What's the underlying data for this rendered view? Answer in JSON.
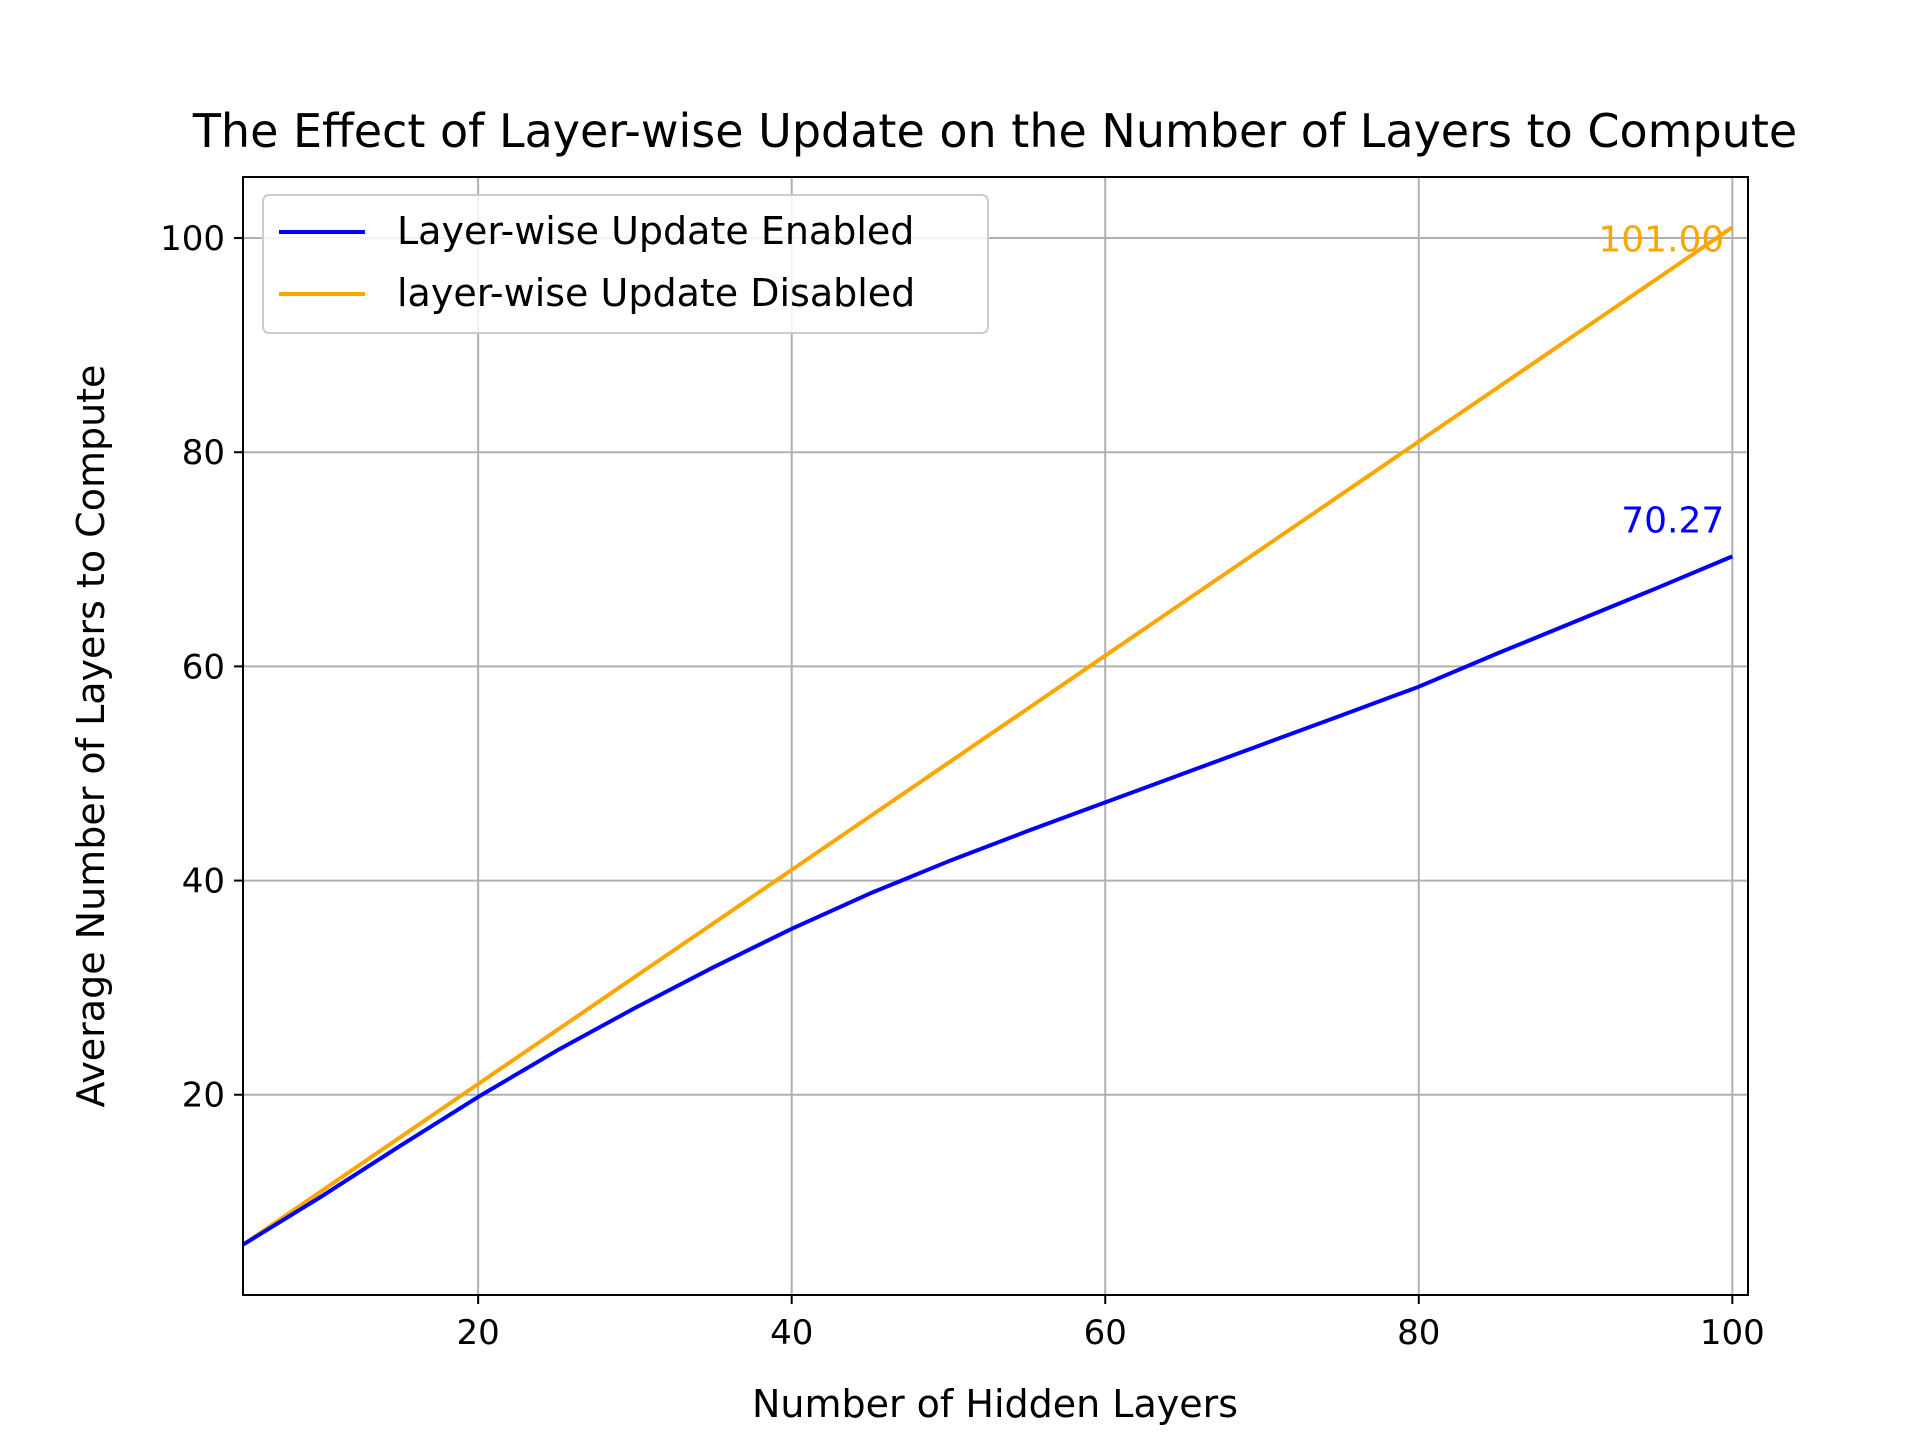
{
  "chart_data": {
    "type": "line",
    "title": "The Effect of Layer-wise Update on the Number of Layers to Compute",
    "xlabel": "Number of Hidden Layers",
    "ylabel": "Average Number of Layers to Compute",
    "xlim": [
      5,
      101
    ],
    "ylim": [
      1.3,
      105.7
    ],
    "xticks": [
      20,
      40,
      60,
      80,
      100
    ],
    "yticks": [
      20,
      40,
      60,
      80,
      100
    ],
    "grid": true,
    "legend_position": "upper left",
    "series": [
      {
        "name": "Layer-wise Update Enabled",
        "color": "#0000ff",
        "x": [
          5,
          10,
          15,
          20,
          25,
          30,
          35,
          40,
          45,
          50,
          55,
          60,
          65,
          70,
          75,
          80,
          85,
          90,
          95,
          100
        ],
        "y": [
          6.0,
          10.5,
          15.2,
          19.8,
          24.1,
          28.1,
          31.9,
          35.5,
          38.8,
          41.8,
          44.6,
          47.3,
          50.0,
          52.7,
          55.4,
          58.1,
          61.2,
          64.2,
          67.2,
          70.27
        ]
      },
      {
        "name": "layer-wise Update Disabled",
        "color": "#ffa500",
        "x": [
          5,
          10,
          20,
          30,
          40,
          50,
          60,
          70,
          80,
          90,
          100
        ],
        "y": [
          6.0,
          11.0,
          21.0,
          31.0,
          41.0,
          51.0,
          61.0,
          71.0,
          81.0,
          91.0,
          101.0
        ]
      }
    ],
    "annotations": [
      {
        "text": "101.00",
        "x": 100,
        "y": 101.0,
        "color": "#ffa500"
      },
      {
        "text": "70.27",
        "x": 100,
        "y": 70.27,
        "color": "#0000ff"
      }
    ]
  }
}
